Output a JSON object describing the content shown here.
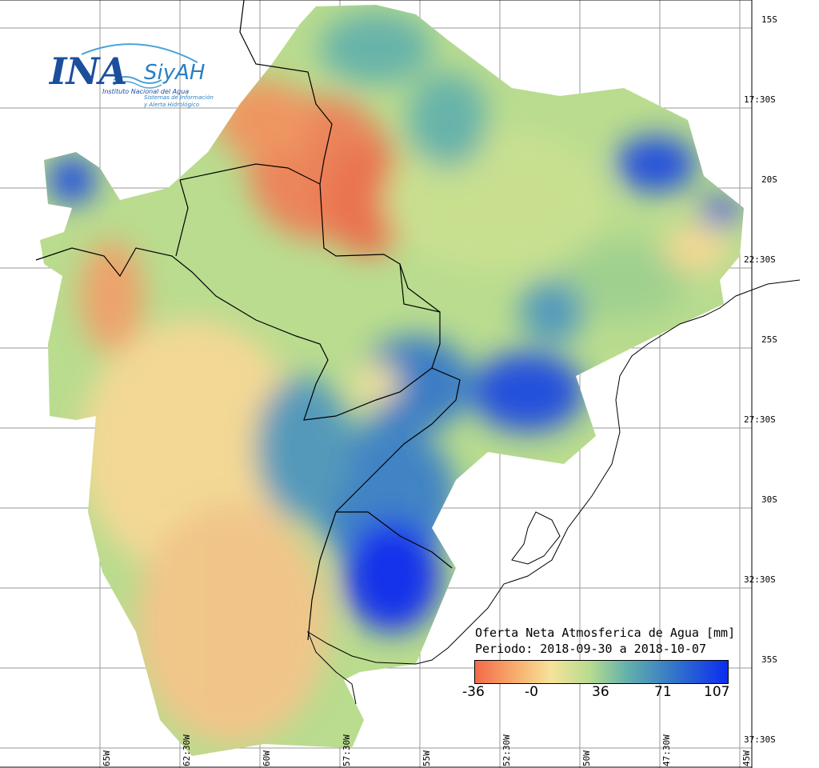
{
  "logo": {
    "ina": "INA",
    "siyah": "SiyAH",
    "institute": "Instituto Nacional del Agua",
    "system_line1": "Sistemas de Información",
    "system_line2": "y Alerta Hidrológico"
  },
  "legend": {
    "title": "Oferta Neta Atmosferica de Agua [mm]",
    "period": "Periodo: 2018-09-30 a 2018-10-07",
    "ticks": [
      "-36",
      "-0",
      "36",
      "71",
      "107"
    ],
    "tick_values": [
      -36,
      0,
      36,
      71,
      107
    ],
    "range": [
      -36,
      107
    ]
  },
  "axes": {
    "lat_labels": [
      "15S",
      "17:30S",
      "20S",
      "22:30S",
      "25S",
      "27:30S",
      "30S",
      "32:30S",
      "35S",
      "37:30S"
    ],
    "lon_labels": [
      "65W",
      "62:30W",
      "60W",
      "57:30W",
      "55W",
      "52:30W",
      "50W",
      "47:30W",
      "45W"
    ]
  },
  "colors": {
    "negative": "#f26a4a",
    "zero": "#f6e39a",
    "positive": "#0b2cf0"
  }
}
